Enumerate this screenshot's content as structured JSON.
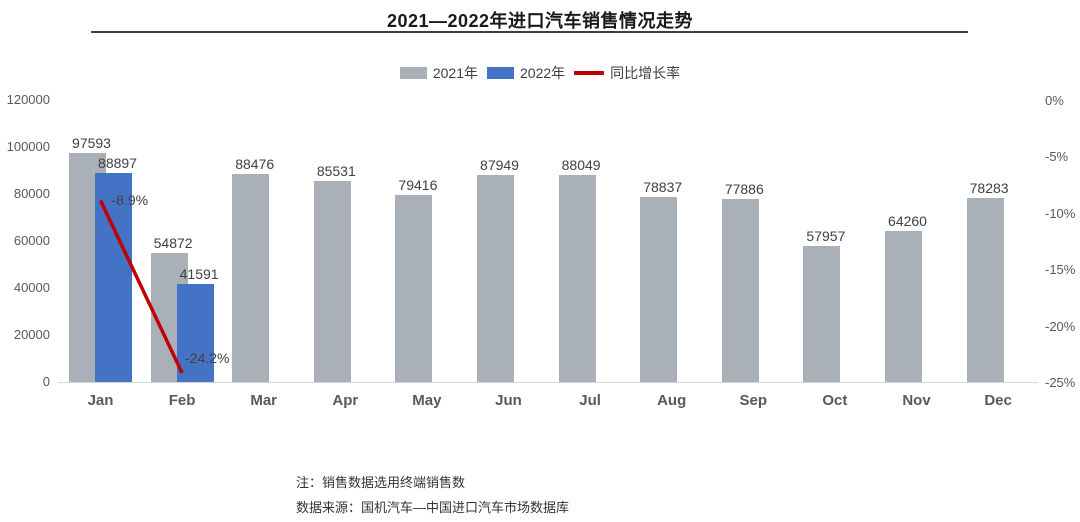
{
  "page": {
    "title": "2021—2022年进口汽车销售情况走势",
    "notes": [
      "注：销售数据选用终端销售数",
      "数据来源：国机汽车—中国进口汽车市场数据库"
    ]
  },
  "colors": {
    "bar_2021": "#a9b0b8",
    "bar_2022": "#4472c4",
    "growth_line": "#c00000",
    "axis_text": "#595959",
    "label_text": "#404040"
  },
  "legend": [
    {
      "label": "2021年",
      "type": "bar",
      "color": "#a9b0b8"
    },
    {
      "label": "2022年",
      "type": "bar",
      "color": "#4472c4"
    },
    {
      "label": "同比增长率",
      "type": "line",
      "color": "#c00000"
    }
  ],
  "chart_data": {
    "type": "bar",
    "title": "2021—2022年进口汽车销售情况走势",
    "categories": [
      "Jan",
      "Feb",
      "Mar",
      "Apr",
      "May",
      "Jun",
      "Jul",
      "Aug",
      "Sep",
      "Oct",
      "Nov",
      "Dec"
    ],
    "series": [
      {
        "name": "2021年",
        "type": "bar",
        "axis": "left",
        "color": "#a9b0b8",
        "values": [
          97593,
          54872,
          88476,
          85531,
          79416,
          87949,
          88049,
          78837,
          77886,
          57957,
          64260,
          78283
        ]
      },
      {
        "name": "2022年",
        "type": "bar",
        "axis": "left",
        "color": "#4472c4",
        "values": [
          88897,
          41591,
          null,
          null,
          null,
          null,
          null,
          null,
          null,
          null,
          null,
          null
        ]
      },
      {
        "name": "同比增长率",
        "type": "line",
        "axis": "right",
        "color": "#c00000",
        "values": [
          -8.9,
          -24.2,
          null,
          null,
          null,
          null,
          null,
          null,
          null,
          null,
          null,
          null
        ],
        "point_labels": [
          "-8.9%",
          "-24.2%"
        ]
      }
    ],
    "left_axis": {
      "min": 0,
      "max": 120000,
      "step": 20000,
      "ticks": [
        "0",
        "20000",
        "40000",
        "60000",
        "80000",
        "100000",
        "120000"
      ]
    },
    "right_axis": {
      "min": -25,
      "max": 0,
      "step": -5,
      "ticks": [
        "0%",
        "-5%",
        "-10%",
        "-15%",
        "-20%",
        "-25%"
      ]
    },
    "grid": false,
    "legend_position": "top"
  }
}
